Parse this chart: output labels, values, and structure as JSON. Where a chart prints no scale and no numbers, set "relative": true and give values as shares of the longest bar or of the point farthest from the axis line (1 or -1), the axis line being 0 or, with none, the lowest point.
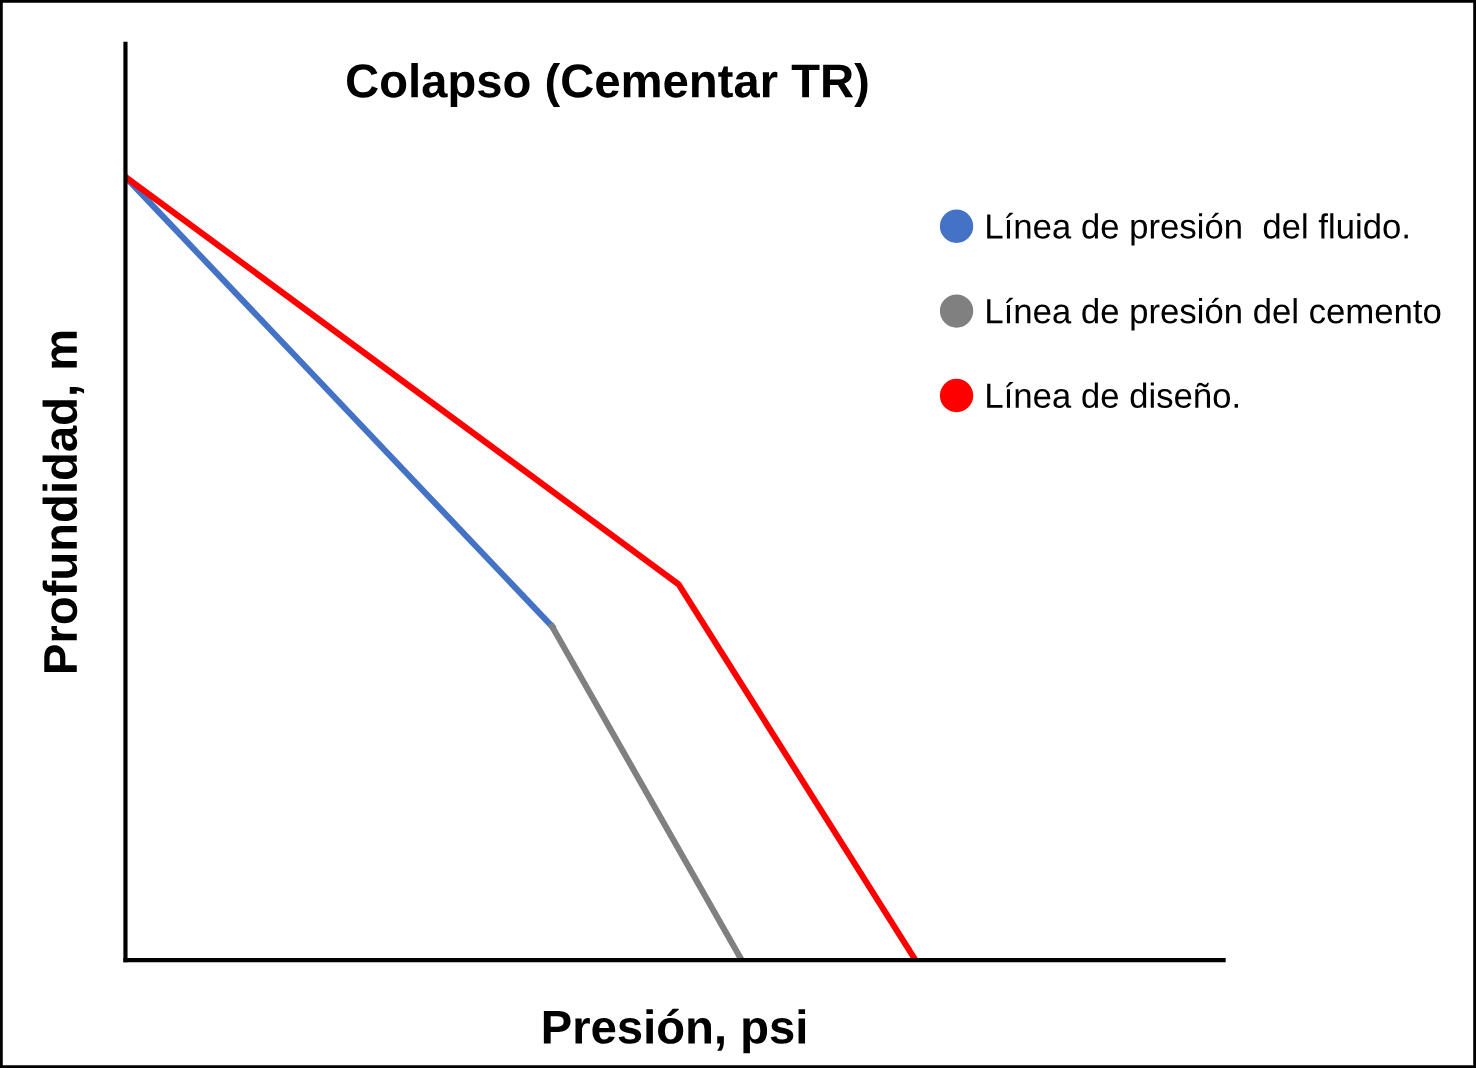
{
  "chart_data": {
    "type": "line",
    "title": "Colapso (Cementar TR)",
    "xlabel": "Presión, psi",
    "ylabel": "Profundidad, m",
    "relative": true,
    "legend": "top right",
    "marker": "none",
    "line_style": "solid",
    "categories": [
      null,
      null,
      null,
      null,
      null,
      null,
      null,
      null,
      null,
      null,
      null,
      null,
      null,
      null,
      null,
      null,
      null,
      null,
      null,
      null,
      null,
      null,
      null,
      null,
      null,
      null,
      null,
      null,
      null,
      null,
      null,
      null,
      null,
      null,
      null,
      null,
      null,
      null,
      null,
      null,
      null,
      null,
      null,
      null,
      null,
      null,
      null,
      null,
      null,
      null,
      null
    ],
    "series": [
      {
        "name": "Línea de presión  del fluido.",
        "color": "#4472c4",
        "values": [
          1,
          null,
          null,
          null,
          null,
          null,
          null,
          null,
          null,
          null,
          null,
          null,
          null,
          null,
          null,
          null,
          null,
          null,
          null,
          null,
          null,
          null,
          null,
          null,
          null,
          null,
          null,
          0.426,
          null,
          null,
          null,
          null,
          null,
          null,
          null,
          null,
          null,
          null,
          null,
          null,
          null,
          null,
          null,
          null,
          null,
          null,
          null,
          null,
          null,
          null,
          null
        ]
      },
      {
        "name": "Línea de presión del cemento",
        "color": "#808080",
        "values": [
          null,
          null,
          null,
          null,
          null,
          null,
          null,
          null,
          null,
          null,
          null,
          null,
          null,
          null,
          null,
          null,
          null,
          null,
          null,
          null,
          null,
          null,
          null,
          null,
          null,
          null,
          null,
          0.426,
          null,
          null,
          null,
          null,
          null,
          null,
          null,
          null,
          null,
          null,
          null,
          0,
          null,
          null,
          null,
          null,
          null,
          null,
          null,
          null,
          null,
          null,
          null
        ]
      },
      {
        "name": "Línea de diseño.",
        "color": "#ff0000",
        "values": [
          1,
          null,
          null,
          null,
          null,
          null,
          null,
          null,
          null,
          null,
          null,
          null,
          null,
          null,
          null,
          null,
          null,
          null,
          null,
          null,
          null,
          null,
          null,
          null,
          null,
          null,
          null,
          null,
          null,
          null,
          null,
          null,
          null,
          null,
          null,
          0.48,
          null,
          null,
          null,
          null,
          null,
          null,
          null,
          null,
          null,
          null,
          null,
          null,
          null,
          null,
          0
        ]
      }
    ]
  }
}
